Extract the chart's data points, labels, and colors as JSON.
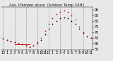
{
  "title": "Aus. tTemper ature  Outdoor Temp 24H1",
  "background_color": "#e8e8e8",
  "plot_bg_color": "#e8e8e8",
  "grid_color": "#888888",
  "hours": [
    0,
    1,
    2,
    3,
    4,
    5,
    6,
    7,
    8,
    9,
    10,
    11,
    12,
    13,
    14,
    15,
    16,
    17,
    18,
    19,
    20,
    21,
    22,
    23
  ],
  "temp_values": [
    64,
    63,
    62,
    61,
    60,
    59,
    58,
    57,
    58,
    60,
    63,
    68,
    73,
    77,
    80,
    82,
    83,
    82,
    80,
    77,
    73,
    69,
    66,
    65
  ],
  "heat_index_values": [
    64,
    63,
    62,
    61,
    60,
    59,
    58,
    57,
    58,
    61,
    65,
    71,
    77,
    82,
    86,
    88,
    89,
    88,
    85,
    81,
    75,
    70,
    66,
    65
  ],
  "temp_color": "#000000",
  "heat_color": "#cc0000",
  "ylim": [
    54,
    92
  ],
  "ytick_values": [
    55,
    60,
    65,
    70,
    75,
    80,
    85,
    90
  ],
  "ytick_labels": [
    "55",
    "60",
    "65",
    "70",
    "75",
    "80",
    "85",
    "90"
  ],
  "xtick_labels": [
    "12",
    "1",
    "2",
    "3",
    "4",
    "5",
    "6",
    "7",
    "8",
    "9",
    "10",
    "11",
    "12",
    "1",
    "2",
    "3",
    "4",
    "5",
    "6",
    "7",
    "8",
    "9",
    "10",
    "11"
  ],
  "vgrid_hours": [
    0,
    3,
    6,
    9,
    12,
    15,
    18,
    21
  ],
  "marker_size": 1.5,
  "tick_fontsize": 3.5,
  "title_fontsize": 3.8,
  "red_line_x": [
    3,
    7
  ],
  "red_line_y": [
    59,
    59
  ]
}
